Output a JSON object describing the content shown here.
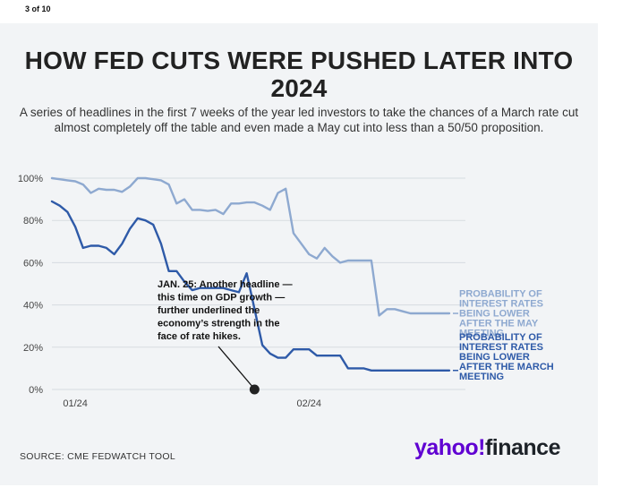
{
  "page": {
    "counter": "3 of 10"
  },
  "chart_data": {
    "type": "line",
    "title": "HOW FED CUTS WERE PUSHED LATER INTO 2024",
    "subtitle": "A series of headlines in the first 7 weeks of the year led investors to take the chances of a March rate cut almost completely off the table and even made a May cut into less than a 50/50 proposition.",
    "xlabel": "",
    "ylabel": "",
    "ylim": [
      0,
      100
    ],
    "xlim": [
      0,
      52
    ],
    "y_ticks": [
      "100%",
      "80%",
      "60%",
      "40%",
      "20%",
      "0%"
    ],
    "y_tick_values": [
      100,
      80,
      60,
      40,
      20,
      0
    ],
    "x_ticks": [
      "01/24",
      "02/24"
    ],
    "x_tick_values": [
      3,
      33
    ],
    "x": [
      0,
      1,
      2,
      3,
      4,
      5,
      6,
      7,
      8,
      9,
      10,
      11,
      12,
      13,
      14,
      15,
      16,
      17,
      18,
      19,
      20,
      21,
      22,
      23,
      24,
      25,
      26,
      27,
      28,
      29,
      30,
      31,
      32,
      33,
      34,
      35,
      36,
      37,
      38,
      39,
      40,
      41,
      42,
      43,
      44,
      45,
      46,
      47,
      48,
      49,
      50,
      51
    ],
    "series": [
      {
        "name": "PROBABILITY OF INTEREST RATES BEING LOWER AFTER THE MAY MEETING",
        "color": "#8ea9d0",
        "values": [
          100,
          99.5,
          99,
          98.5,
          97,
          93,
          95,
          94.5,
          94.5,
          93.5,
          96,
          100,
          100,
          99.5,
          99,
          97,
          88,
          90,
          85,
          85,
          84.5,
          85,
          83,
          88,
          88,
          88.5,
          88.5,
          87,
          85,
          93,
          95,
          74,
          69,
          64,
          62,
          67,
          63,
          60,
          61,
          61,
          61,
          61,
          35,
          38,
          38,
          37,
          36,
          36,
          36,
          36,
          36,
          36
        ]
      },
      {
        "name": "PROBABILITY OF INTEREST RATES BEING LOWER AFTER THE MARCH MEETING",
        "color": "#2e5aa8",
        "values": [
          89,
          87,
          84,
          77,
          67,
          68,
          68,
          67,
          64,
          69,
          76,
          81,
          80,
          78,
          69,
          56,
          56,
          51,
          47,
          48,
          48,
          48,
          48,
          47,
          46,
          55,
          38,
          21,
          17,
          15,
          15,
          19,
          19,
          19,
          16,
          16,
          16,
          16,
          10,
          10,
          10,
          9,
          9,
          9,
          9,
          9,
          9,
          9,
          9,
          9,
          9,
          9
        ]
      }
    ],
    "annotation": {
      "lines": [
        "JAN. 25: Another headline —",
        "this time on GDP growth —",
        "further underlined the",
        "economy’s strength in the",
        "face of rate hikes."
      ],
      "point_x": 26,
      "point_y": 0
    },
    "legend": [
      {
        "lines": [
          "PROBABILITY OF",
          "INTEREST RATES",
          "BEING LOWER",
          "AFTER THE MAY",
          "MEETING"
        ],
        "color": "#8ea9d0"
      },
      {
        "lines": [
          "PROBABILITY OF",
          "INTEREST RATES",
          "BEING LOWER",
          "AFTER THE MARCH",
          "MEETING"
        ],
        "color": "#2e5aa8"
      }
    ]
  },
  "footer": {
    "source": "SOURCE: CME FEDWATCH TOOL",
    "logo_yahoo": "yahoo",
    "logo_bang": "!",
    "logo_finance": "finance"
  }
}
